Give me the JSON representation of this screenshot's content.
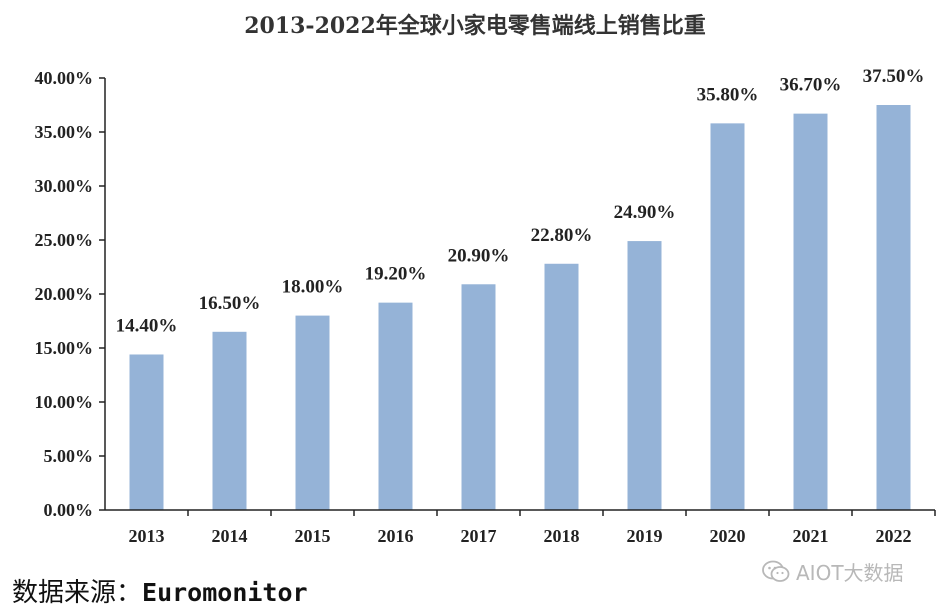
{
  "title": "2013-2022年全球小家电零售端线上销售比重",
  "source": {
    "label": "数据来源：",
    "value": "Euromonitor"
  },
  "watermark": {
    "icon": "wechat-icon",
    "text": "AIOT大数据"
  },
  "chart_data": {
    "type": "bar",
    "title": "2013-2022年全球小家电零售端线上销售比重",
    "xlabel": "",
    "ylabel": "",
    "categories": [
      "2013",
      "2014",
      "2015",
      "2016",
      "2017",
      "2018",
      "2019",
      "2020",
      "2021",
      "2022"
    ],
    "values": [
      14.4,
      16.5,
      18.0,
      19.2,
      20.9,
      22.8,
      24.9,
      35.8,
      36.7,
      37.5
    ],
    "value_labels": [
      "14.40%",
      "16.50%",
      "18.00%",
      "19.20%",
      "20.90%",
      "22.80%",
      "24.90%",
      "35.80%",
      "36.70%",
      "37.50%"
    ],
    "ylim": [
      0,
      40
    ],
    "yticks": [
      0,
      5,
      10,
      15,
      20,
      25,
      30,
      35,
      40
    ],
    "ytick_labels": [
      "0.00%",
      "5.00%",
      "10.00%",
      "15.00%",
      "20.00%",
      "25.00%",
      "30.00%",
      "35.00%",
      "40.00%"
    ],
    "bar_color": "#95b3d7",
    "grid": false,
    "legend": "none"
  }
}
